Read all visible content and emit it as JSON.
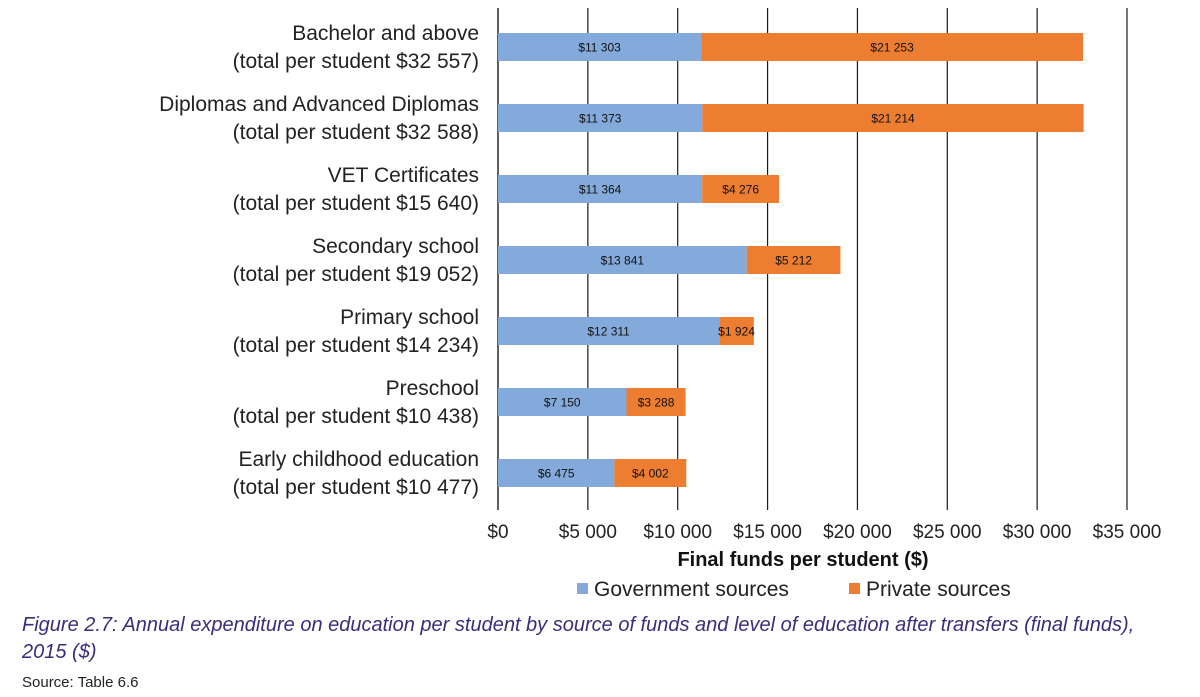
{
  "chart_data": {
    "type": "bar",
    "orientation": "horizontal",
    "stacked": true,
    "categories": [
      {
        "line1": "Bachelor and above",
        "line2": "(total per student $32 557)"
      },
      {
        "line1": "Diplomas and Advanced Diplomas",
        "line2": "(total per student $32 588)"
      },
      {
        "line1": "VET Certificates",
        "line2": "(total per student $15 640)"
      },
      {
        "line1": "Secondary school",
        "line2": "(total per student $19 052)"
      },
      {
        "line1": "Primary school",
        "line2": "(total per student $14 234)"
      },
      {
        "line1": "Preschool",
        "line2": "(total per student $10 438)"
      },
      {
        "line1": "Early childhood education",
        "line2": "(total per student $10 477)"
      }
    ],
    "series": [
      {
        "name": "Government sources",
        "color": "#84aadc",
        "values": [
          11303,
          11373,
          11364,
          13841,
          12311,
          7150,
          6475
        ],
        "labels": [
          "$11 303",
          "$11 373",
          "$11 364",
          "$13 841",
          "$12 311",
          "$7 150",
          "$6 475"
        ]
      },
      {
        "name": "Private sources",
        "color": "#ed7d31",
        "values": [
          21253,
          21214,
          4276,
          5212,
          1924,
          3288,
          4002
        ],
        "labels": [
          "$21 253",
          "$21 214",
          "$4 276",
          "$5 212",
          "$1 924",
          "$3 288",
          "$4 002"
        ]
      }
    ],
    "xlim": [
      0,
      35000
    ],
    "xticks": [
      0,
      5000,
      10000,
      15000,
      20000,
      25000,
      30000,
      35000
    ],
    "xtick_labels": [
      "$0",
      "$5 000",
      "$10 000",
      "$15 000",
      "$20 000",
      "$25 000",
      "$30 000",
      "$35 000"
    ],
    "xlabel": "Final funds per student ($)",
    "grid": true,
    "legend_position": "bottom"
  },
  "caption": "Figure 2.7: Annual expenditure on education per student by source of funds and level of education after transfers (final funds), 2015 ($)",
  "source": "Source: Table 6.6"
}
